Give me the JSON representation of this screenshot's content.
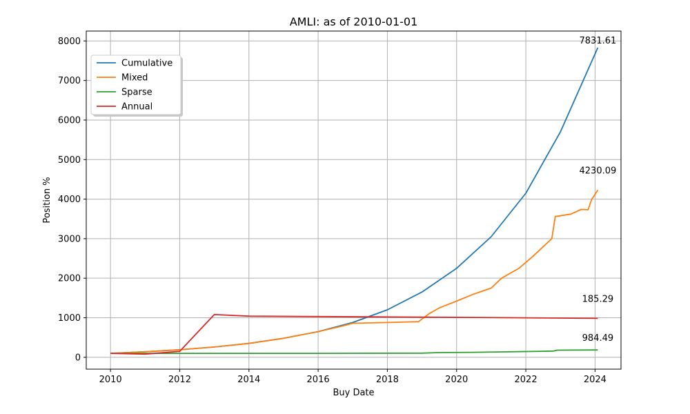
{
  "chart_data": {
    "type": "line",
    "title": "AMLI: as of 2010-01-01",
    "xlabel": "Buy Date",
    "ylabel": "Position %",
    "xlim": [
      2009.3,
      2024.75
    ],
    "ylim": [
      -300,
      8250
    ],
    "x_ticks": [
      2010,
      2012,
      2014,
      2016,
      2018,
      2020,
      2022,
      2024
    ],
    "y_ticks": [
      0,
      1000,
      2000,
      3000,
      4000,
      5000,
      6000,
      7000,
      8000
    ],
    "grid": true,
    "legend_position": "top-left",
    "series": [
      {
        "name": "Cumulative",
        "color": "#1f77b4",
        "points": [
          [
            2010,
            100
          ],
          [
            2011,
            140
          ],
          [
            2012,
            190
          ],
          [
            2013,
            260
          ],
          [
            2014,
            350
          ],
          [
            2015,
            480
          ],
          [
            2016,
            650
          ],
          [
            2017,
            880
          ],
          [
            2018,
            1200
          ],
          [
            2019,
            1650
          ],
          [
            2020,
            2250
          ],
          [
            2021,
            3050
          ],
          [
            2022,
            4150
          ],
          [
            2023,
            5700
          ],
          [
            2024.08,
            7831.61
          ]
        ]
      },
      {
        "name": "Mixed",
        "color": "#ff7f0e",
        "points": [
          [
            2010,
            100
          ],
          [
            2011,
            140
          ],
          [
            2012,
            190
          ],
          [
            2013,
            260
          ],
          [
            2014,
            350
          ],
          [
            2015,
            480
          ],
          [
            2016,
            650
          ],
          [
            2016.7,
            790
          ],
          [
            2017,
            860
          ],
          [
            2018,
            880
          ],
          [
            2018.9,
            900
          ],
          [
            2019.2,
            1100
          ],
          [
            2019.5,
            1250
          ],
          [
            2020,
            1420
          ],
          [
            2020.5,
            1600
          ],
          [
            2021,
            1750
          ],
          [
            2021.3,
            2000
          ],
          [
            2021.8,
            2250
          ],
          [
            2022.2,
            2550
          ],
          [
            2022.75,
            3000
          ],
          [
            2022.85,
            3560
          ],
          [
            2023.3,
            3620
          ],
          [
            2023.6,
            3740
          ],
          [
            2023.8,
            3730
          ],
          [
            2023.9,
            3990
          ],
          [
            2024.08,
            4230.09
          ]
        ]
      },
      {
        "name": "Sparse",
        "color": "#2ca02c",
        "points": [
          [
            2010,
            100
          ],
          [
            2012,
            100
          ],
          [
            2016,
            100
          ],
          [
            2019,
            105
          ],
          [
            2019.5,
            118
          ],
          [
            2020.5,
            125
          ],
          [
            2021.5,
            138
          ],
          [
            2022.8,
            158
          ],
          [
            2022.9,
            180
          ],
          [
            2024.08,
            185.29
          ]
        ]
      },
      {
        "name": "Annual",
        "color": "#d62728",
        "points": [
          [
            2010,
            100
          ],
          [
            2011,
            80
          ],
          [
            2012,
            150
          ],
          [
            2013,
            1080
          ],
          [
            2014,
            1040
          ],
          [
            2016,
            1030
          ],
          [
            2020,
            1010
          ],
          [
            2024.08,
            984.49
          ]
        ]
      }
    ],
    "end_labels": [
      "7831.61",
      "4230.09",
      "984.49",
      "185.29"
    ]
  }
}
